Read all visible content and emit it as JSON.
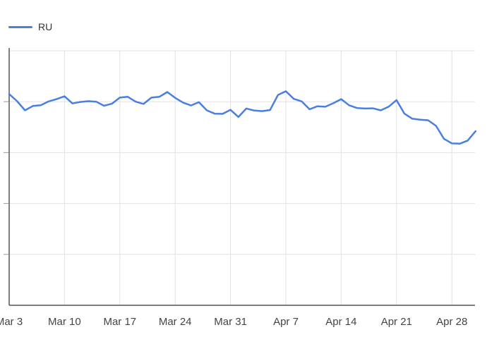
{
  "chart_data": {
    "type": "line",
    "title": "",
    "xlabel": "",
    "ylabel": "",
    "x_tick_labels": [
      "Mar 3",
      "Mar 10",
      "Mar 17",
      "Mar 24",
      "Mar 31",
      "Apr 7",
      "Apr 14",
      "Apr 21",
      "Apr 28"
    ],
    "y_tick_labels": [
      "",
      "",
      "",
      "",
      "",
      ""
    ],
    "grid": true,
    "legend_position": "top-left",
    "series": [
      {
        "name": "RU",
        "color": "#4a7fe0",
        "values": [
          0.83,
          0.802,
          0.766,
          0.783,
          0.786,
          0.801,
          0.81,
          0.821,
          0.793,
          0.799,
          0.802,
          0.8,
          0.784,
          0.792,
          0.816,
          0.819,
          0.8,
          0.791,
          0.816,
          0.819,
          0.838,
          0.815,
          0.796,
          0.785,
          0.798,
          0.766,
          0.753,
          0.752,
          0.768,
          0.74,
          0.773,
          0.765,
          0.763,
          0.767,
          0.826,
          0.841,
          0.811,
          0.801,
          0.77,
          0.782,
          0.78,
          0.794,
          0.81,
          0.786,
          0.775,
          0.773,
          0.774,
          0.766,
          0.78,
          0.806,
          0.753,
          0.733,
          0.729,
          0.727,
          0.705,
          0.654,
          0.636,
          0.635,
          0.647,
          0.684
        ]
      }
    ]
  }
}
